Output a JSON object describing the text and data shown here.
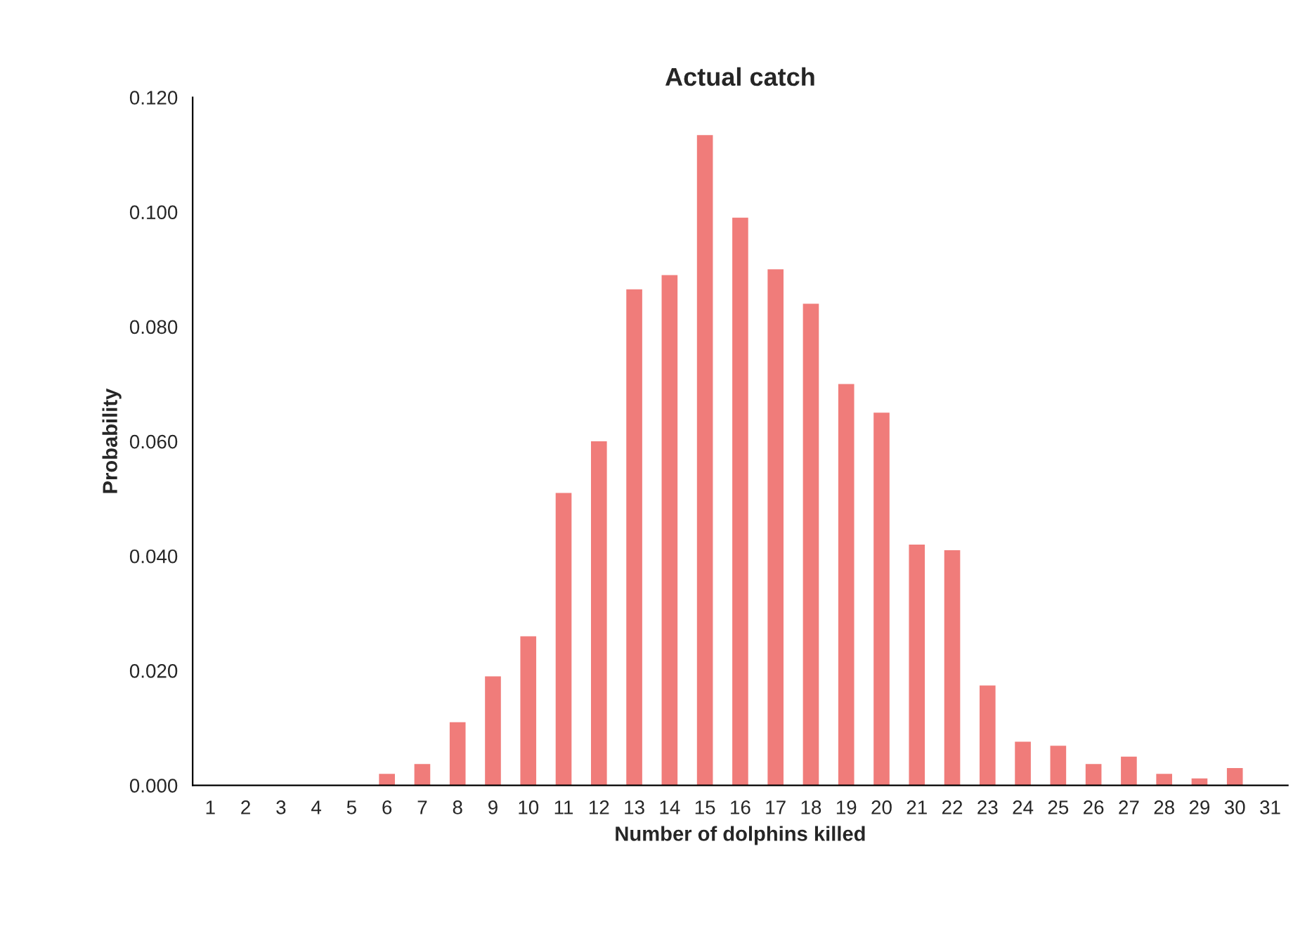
{
  "chart_data": {
    "type": "bar",
    "title": "Actual catch",
    "xlabel": "Number of dolphins killed",
    "ylabel": "Probability",
    "categories": [
      "1",
      "2",
      "3",
      "4",
      "5",
      "6",
      "7",
      "8",
      "9",
      "10",
      "11",
      "12",
      "13",
      "14",
      "15",
      "16",
      "17",
      "18",
      "19",
      "20",
      "21",
      "22",
      "23",
      "24",
      "25",
      "26",
      "27",
      "28",
      "29",
      "30",
      "31"
    ],
    "series": [
      {
        "color": "#f07c7a",
        "values": [
          0,
          0,
          0,
          0,
          0,
          0.002,
          0.0037,
          0.011,
          0.019,
          0.026,
          0.051,
          0.06,
          0.0865,
          0.089,
          0.1134,
          0.099,
          0.09,
          0.084,
          0.07,
          0.065,
          0.042,
          0.041,
          0.0174,
          0.0076,
          0.0069,
          0.0037,
          0.005,
          0.002,
          0.0012,
          0.003,
          0
        ]
      }
    ],
    "ylim": [
      0,
      0.12
    ],
    "yticks": [
      {
        "value": 0,
        "label": "0.000"
      },
      {
        "value": 0.02,
        "label": "0.020"
      },
      {
        "value": 0.04,
        "label": "0.040"
      },
      {
        "value": 0.06,
        "label": "0.060"
      },
      {
        "value": 0.08,
        "label": "0.080"
      },
      {
        "value": 0.1,
        "label": "0.100"
      },
      {
        "value": 0.12,
        "label": "0.120"
      }
    ],
    "grid": false,
    "legend": false
  }
}
